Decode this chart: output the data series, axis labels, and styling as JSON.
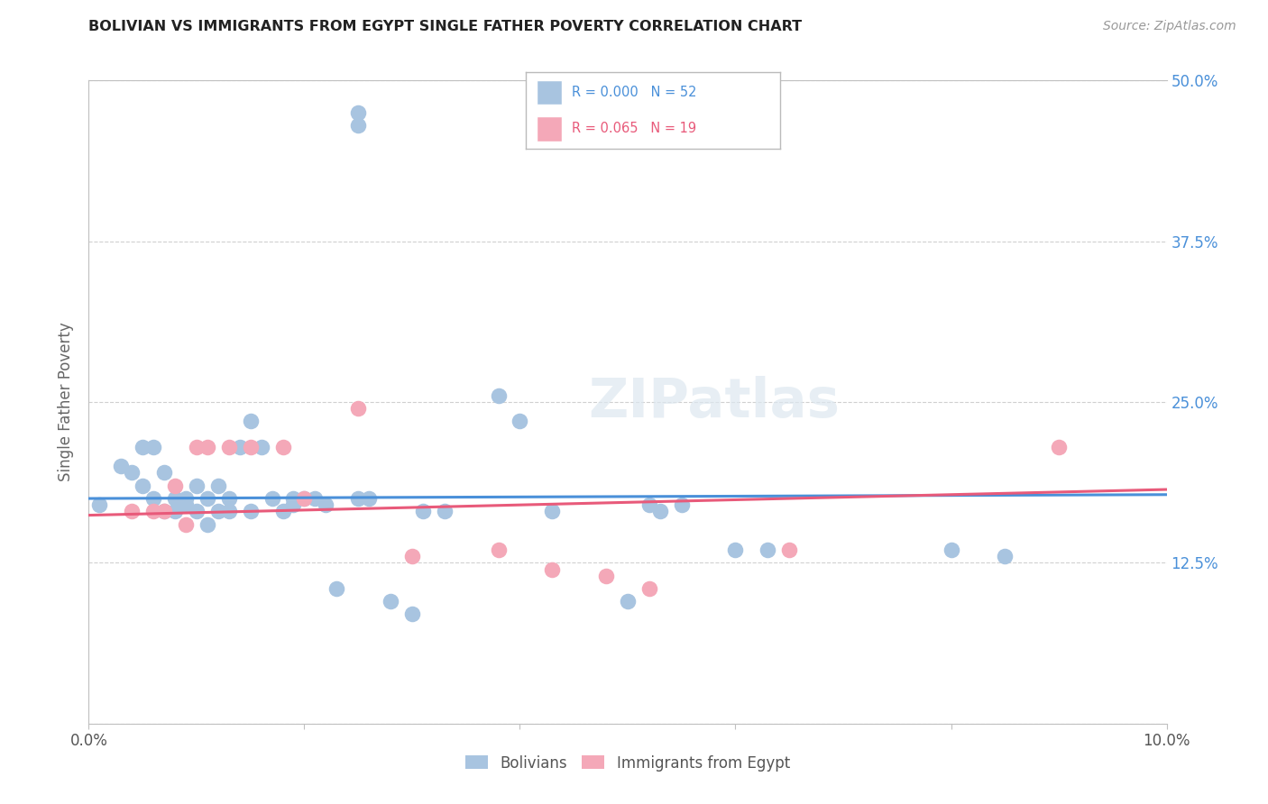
{
  "title": "BOLIVIAN VS IMMIGRANTS FROM EGYPT SINGLE FATHER POVERTY CORRELATION CHART",
  "source": "Source: ZipAtlas.com",
  "ylabel_label": "Single Father Poverty",
  "x_min": 0.0,
  "x_max": 0.1,
  "y_min": 0.0,
  "y_max": 0.5,
  "x_ticks": [
    0.0,
    0.02,
    0.04,
    0.06,
    0.08,
    0.1
  ],
  "x_tick_labels": [
    "0.0%",
    "",
    "",
    "",
    "",
    "10.0%"
  ],
  "y_ticks": [
    0.0,
    0.125,
    0.25,
    0.375,
    0.5
  ],
  "y_tick_labels": [
    "",
    "12.5%",
    "25.0%",
    "37.5%",
    "50.0%"
  ],
  "bolivians_color": "#a8c4e0",
  "egypt_color": "#f4a8b8",
  "trendline_bolivians_color": "#4a90d9",
  "trendline_egypt_color": "#e85a7a",
  "watermark": "ZIPatlas",
  "bolivians_x": [
    0.001,
    0.003,
    0.004,
    0.005,
    0.005,
    0.006,
    0.006,
    0.007,
    0.007,
    0.008,
    0.008,
    0.009,
    0.009,
    0.01,
    0.01,
    0.011,
    0.011,
    0.012,
    0.012,
    0.013,
    0.013,
    0.014,
    0.015,
    0.015,
    0.016,
    0.017,
    0.018,
    0.019,
    0.019,
    0.02,
    0.021,
    0.022,
    0.023,
    0.025,
    0.026,
    0.028,
    0.03,
    0.031,
    0.033,
    0.038,
    0.04,
    0.043,
    0.05,
    0.052,
    0.053,
    0.055,
    0.06,
    0.063,
    0.025,
    0.025,
    0.08,
    0.085
  ],
  "bolivians_y": [
    0.17,
    0.2,
    0.195,
    0.185,
    0.215,
    0.175,
    0.215,
    0.165,
    0.195,
    0.175,
    0.165,
    0.175,
    0.17,
    0.165,
    0.185,
    0.155,
    0.175,
    0.165,
    0.185,
    0.165,
    0.175,
    0.215,
    0.235,
    0.165,
    0.215,
    0.175,
    0.165,
    0.175,
    0.17,
    0.175,
    0.175,
    0.17,
    0.105,
    0.175,
    0.175,
    0.095,
    0.085,
    0.165,
    0.165,
    0.255,
    0.235,
    0.165,
    0.095,
    0.17,
    0.165,
    0.17,
    0.135,
    0.135,
    0.475,
    0.465,
    0.135,
    0.13
  ],
  "egypt_x": [
    0.004,
    0.006,
    0.007,
    0.008,
    0.009,
    0.01,
    0.011,
    0.013,
    0.015,
    0.018,
    0.02,
    0.025,
    0.03,
    0.038,
    0.043,
    0.048,
    0.052,
    0.065,
    0.09
  ],
  "egypt_y": [
    0.165,
    0.165,
    0.165,
    0.185,
    0.155,
    0.215,
    0.215,
    0.215,
    0.215,
    0.215,
    0.175,
    0.245,
    0.13,
    0.135,
    0.12,
    0.115,
    0.105,
    0.135,
    0.215
  ]
}
